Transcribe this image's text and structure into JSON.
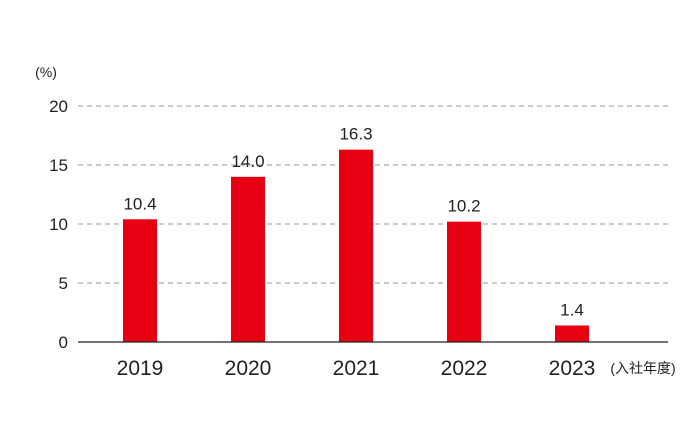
{
  "chart_data": {
    "type": "bar",
    "categories": [
      "2019",
      "2020",
      "2021",
      "2022",
      "2023"
    ],
    "values": [
      10.4,
      14.0,
      16.3,
      10.2,
      1.4
    ],
    "value_labels": [
      "10.4",
      "14.0",
      "16.3",
      "10.2",
      "1.4"
    ],
    "title": "",
    "ylabel": "(%)",
    "xlabel": "(入社年度)",
    "ylim": [
      0,
      20
    ],
    "yticks": [
      "0",
      "5",
      "10",
      "15",
      "20"
    ],
    "grid": "dashed horizontal at each y tick",
    "colors": {
      "bar": "#e60012",
      "grid": "#9a9a9a",
      "axis": "#222222"
    }
  }
}
